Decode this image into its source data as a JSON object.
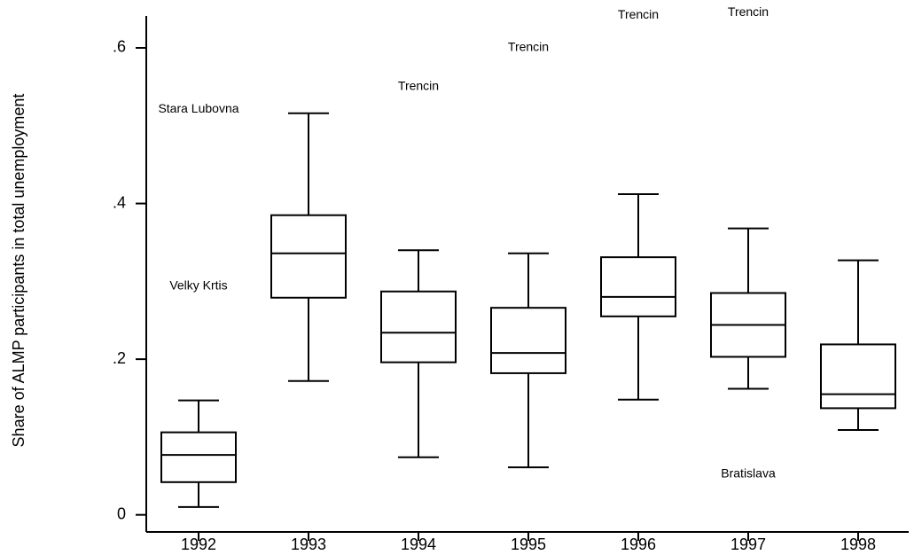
{
  "chart_data": {
    "type": "box",
    "y_label": "Share of ALMP participants in total unemployment",
    "categories": [
      "1992",
      "1993",
      "1994",
      "1995",
      "1996",
      "1997",
      "1998"
    ],
    "boxes": [
      {
        "whisker_low": 0.01,
        "q1": 0.042,
        "median": 0.077,
        "q3": 0.106,
        "whisker_high": 0.147,
        "outliers": [
          {
            "label": "Stara Lubovna",
            "value": 0.521
          },
          {
            "label": "Velky Krtis",
            "value": 0.294
          }
        ]
      },
      {
        "whisker_low": 0.172,
        "q1": 0.279,
        "median": 0.336,
        "q3": 0.385,
        "whisker_high": 0.516,
        "outliers": []
      },
      {
        "whisker_low": 0.074,
        "q1": 0.196,
        "median": 0.234,
        "q3": 0.287,
        "whisker_high": 0.34,
        "outliers": [
          {
            "label": "Trencin",
            "value": 0.55
          }
        ]
      },
      {
        "whisker_low": 0.061,
        "q1": 0.182,
        "median": 0.208,
        "q3": 0.266,
        "whisker_high": 0.336,
        "outliers": [
          {
            "label": "Trencin",
            "value": 0.6
          }
        ]
      },
      {
        "whisker_low": 0.148,
        "q1": 0.255,
        "median": 0.28,
        "q3": 0.331,
        "whisker_high": 0.412,
        "outliers": [
          {
            "label": "Trencin",
            "value": 0.642
          }
        ]
      },
      {
        "whisker_low": 0.162,
        "q1": 0.203,
        "median": 0.244,
        "q3": 0.285,
        "whisker_high": 0.368,
        "outliers": [
          {
            "label": "Trencin",
            "value": 0.645
          },
          {
            "label": "Bratislava",
            "value": 0.052
          }
        ]
      },
      {
        "whisker_low": 0.109,
        "q1": 0.137,
        "median": 0.155,
        "q3": 0.219,
        "whisker_high": 0.327,
        "outliers": []
      }
    ],
    "ylim": [
      -0.022,
      0.641
    ],
    "yticks": [
      0,
      {
        "value": 0.2,
        "label": ".2"
      },
      {
        "value": 0.4,
        "label": ".4"
      },
      {
        "value": 0.6,
        "label": ".6"
      }
    ]
  }
}
